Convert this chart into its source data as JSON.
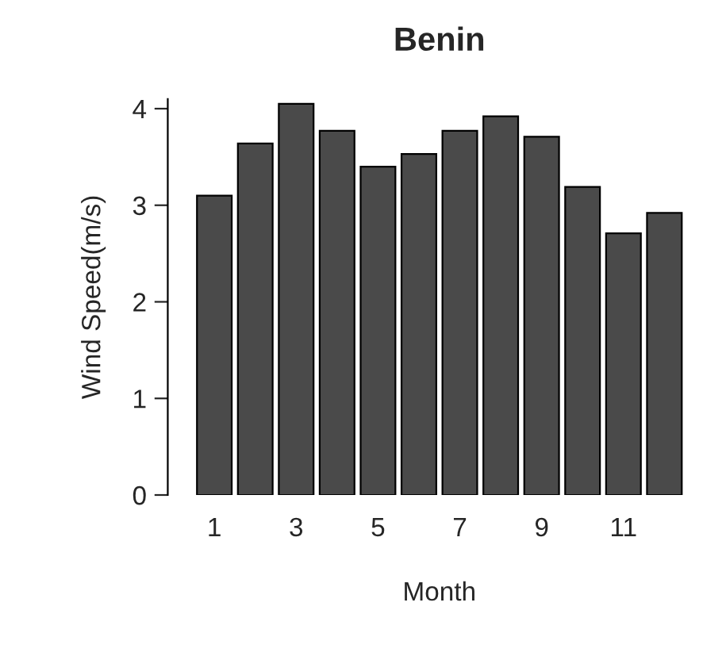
{
  "chart_data": {
    "type": "bar",
    "title": "Benin",
    "xlabel": "Month",
    "ylabel": "Wind Speed(m/s)",
    "categories": [
      "1",
      null,
      "3",
      null,
      "5",
      null,
      "7",
      null,
      "9",
      null,
      "11",
      null
    ],
    "values": [
      3.1,
      3.64,
      4.05,
      3.77,
      3.4,
      3.53,
      3.77,
      3.92,
      3.71,
      3.19,
      2.71,
      2.92
    ],
    "color": "#4a4a4a",
    "ylim": [
      0,
      4.1
    ],
    "yticks": [
      0,
      1,
      2,
      3,
      4
    ],
    "grid": false
  }
}
